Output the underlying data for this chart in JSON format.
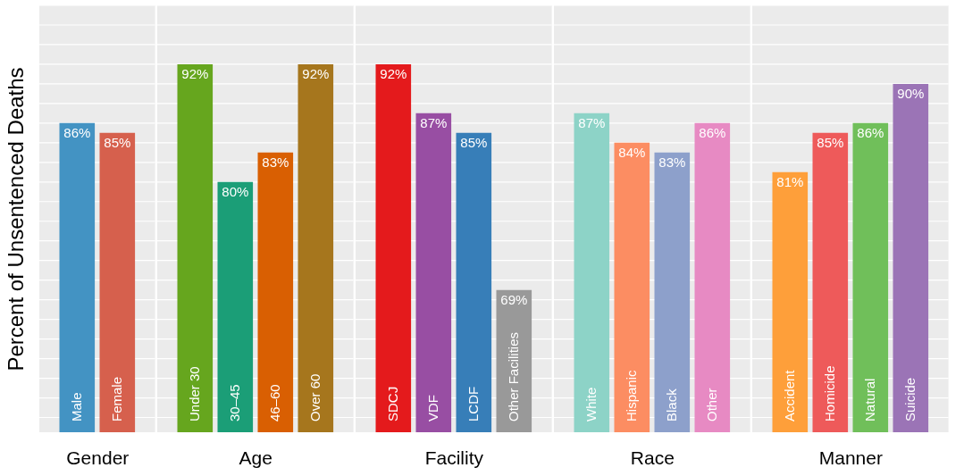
{
  "chart_data": [
    {
      "type": "bar",
      "xlabel": "Gender",
      "ylabel": "Percent of Unsentenced Deaths",
      "categories": [
        "Male",
        "Female"
      ],
      "values": [
        86,
        85
      ],
      "value_labels": [
        "86%",
        "85%"
      ],
      "colors": [
        "#4393c3",
        "#d6604d"
      ],
      "ylim": [
        54.5,
        98
      ],
      "yticks": [
        {
          "value": 56,
          "label": null
        },
        {
          "value": 58,
          "label": null
        },
        {
          "value": 60,
          "label": null
        },
        {
          "value": 62,
          "label": null
        },
        {
          "value": 64,
          "label": null
        },
        {
          "value": 66,
          "label": null
        },
        {
          "value": 68,
          "label": null
        },
        {
          "value": 70,
          "label": null
        },
        {
          "value": 72,
          "label": null
        },
        {
          "value": 74,
          "label": null
        },
        {
          "value": 76,
          "label": null
        },
        {
          "value": 78,
          "label": null
        },
        {
          "value": 80,
          "label": null
        },
        {
          "value": 82,
          "label": null
        },
        {
          "value": 84,
          "label": null
        },
        {
          "value": 86,
          "label": null
        },
        {
          "value": 88,
          "label": null
        },
        {
          "value": 90,
          "label": null
        },
        {
          "value": 92,
          "label": null
        },
        {
          "value": 94,
          "label": null
        },
        {
          "value": 96,
          "label": null
        },
        {
          "value": 98,
          "label": null
        }
      ],
      "grid": "y",
      "tick_labels": false
    },
    {
      "type": "bar",
      "xlabel": "Age",
      "categories": [
        "Under 30",
        "30–45",
        "46–60",
        "Over 60"
      ],
      "values": [
        92,
        80,
        83,
        92
      ],
      "value_labels": [
        "92%",
        "80%",
        "83%",
        "92%"
      ],
      "colors": [
        "#66a61e",
        "#1b9e77",
        "#d95f02",
        "#a6761d"
      ],
      "ylim": [
        54.5,
        98
      ],
      "yticks": [
        {
          "value": 56,
          "label": null
        },
        {
          "value": 58,
          "label": null
        },
        {
          "value": 60,
          "label": null
        },
        {
          "value": 62,
          "label": null
        },
        {
          "value": 64,
          "label": null
        },
        {
          "value": 66,
          "label": null
        },
        {
          "value": 68,
          "label": null
        },
        {
          "value": 70,
          "label": null
        },
        {
          "value": 72,
          "label": null
        },
        {
          "value": 74,
          "label": null
        },
        {
          "value": 76,
          "label": null
        },
        {
          "value": 78,
          "label": null
        },
        {
          "value": 80,
          "label": null
        },
        {
          "value": 82,
          "label": null
        },
        {
          "value": 84,
          "label": null
        },
        {
          "value": 86,
          "label": null
        },
        {
          "value": 88,
          "label": null
        },
        {
          "value": 90,
          "label": null
        },
        {
          "value": 92,
          "label": null
        },
        {
          "value": 94,
          "label": null
        },
        {
          "value": 96,
          "label": null
        },
        {
          "value": 98,
          "label": null
        }
      ],
      "grid": "y",
      "tick_labels": false
    },
    {
      "type": "bar",
      "xlabel": "Facility",
      "categories": [
        "SDCJ",
        "VDF",
        "LCDF",
        "Other Facilities"
      ],
      "values": [
        92,
        87,
        85,
        69
      ],
      "value_labels": [
        "92%",
        "87%",
        "85%",
        "69%"
      ],
      "colors": [
        "#e41a1c",
        "#984ea3",
        "#377eb8",
        "#999999"
      ],
      "ylim": [
        54.5,
        98
      ],
      "yticks": [
        {
          "value": 56,
          "label": null
        },
        {
          "value": 58,
          "label": null
        },
        {
          "value": 60,
          "label": null
        },
        {
          "value": 62,
          "label": null
        },
        {
          "value": 64,
          "label": null
        },
        {
          "value": 66,
          "label": null
        },
        {
          "value": 68,
          "label": null
        },
        {
          "value": 70,
          "label": null
        },
        {
          "value": 72,
          "label": null
        },
        {
          "value": 74,
          "label": null
        },
        {
          "value": 76,
          "label": null
        },
        {
          "value": 78,
          "label": null
        },
        {
          "value": 80,
          "label": null
        },
        {
          "value": 82,
          "label": null
        },
        {
          "value": 84,
          "label": null
        },
        {
          "value": 86,
          "label": null
        },
        {
          "value": 88,
          "label": null
        },
        {
          "value": 90,
          "label": null
        },
        {
          "value": 92,
          "label": null
        },
        {
          "value": 94,
          "label": null
        },
        {
          "value": 96,
          "label": null
        },
        {
          "value": 98,
          "label": null
        }
      ],
      "grid": "y",
      "tick_labels": false
    },
    {
      "type": "bar",
      "xlabel": "Race",
      "categories": [
        "White",
        "Hispanic",
        "Black",
        "Other"
      ],
      "values": [
        87,
        84,
        83,
        86
      ],
      "value_labels": [
        "87%",
        "84%",
        "83%",
        "86%"
      ],
      "colors": [
        "#8dd3c7",
        "#fc8d62",
        "#8da0cb",
        "#e78ac3"
      ],
      "ylim": [
        54.5,
        98
      ],
      "yticks": [
        {
          "value": 56,
          "label": null
        },
        {
          "value": 58,
          "label": null
        },
        {
          "value": 60,
          "label": null
        },
        {
          "value": 62,
          "label": null
        },
        {
          "value": 64,
          "label": null
        },
        {
          "value": 66,
          "label": null
        },
        {
          "value": 68,
          "label": null
        },
        {
          "value": 70,
          "label": null
        },
        {
          "value": 72,
          "label": null
        },
        {
          "value": 74,
          "label": null
        },
        {
          "value": 76,
          "label": null
        },
        {
          "value": 78,
          "label": null
        },
        {
          "value": 80,
          "label": null
        },
        {
          "value": 82,
          "label": null
        },
        {
          "value": 84,
          "label": null
        },
        {
          "value": 86,
          "label": null
        },
        {
          "value": 88,
          "label": null
        },
        {
          "value": 90,
          "label": null
        },
        {
          "value": 92,
          "label": null
        },
        {
          "value": 94,
          "label": null
        },
        {
          "value": 96,
          "label": null
        },
        {
          "value": 98,
          "label": null
        }
      ],
      "grid": "y",
      "tick_labels": false
    },
    {
      "type": "bar",
      "xlabel": "Manner",
      "categories": [
        "Accident",
        "Homicide",
        "Natural",
        "Suicide"
      ],
      "values": [
        81,
        85,
        86,
        90
      ],
      "value_labels": [
        "81%",
        "85%",
        "86%",
        "90%"
      ],
      "colors": [
        "#fe9f3a",
        "#ee5a5a",
        "#70bf5a",
        "#9b74b6"
      ],
      "ylim": [
        54.5,
        98
      ],
      "yticks": [
        {
          "value": 56,
          "label": null
        },
        {
          "value": 58,
          "label": null
        },
        {
          "value": 60,
          "label": null
        },
        {
          "value": 62,
          "label": null
        },
        {
          "value": 64,
          "label": null
        },
        {
          "value": 66,
          "label": null
        },
        {
          "value": 68,
          "label": null
        },
        {
          "value": 70,
          "label": null
        },
        {
          "value": 72,
          "label": null
        },
        {
          "value": 74,
          "label": null
        },
        {
          "value": 76,
          "label": null
        },
        {
          "value": 78,
          "label": null
        },
        {
          "value": 80,
          "label": null
        },
        {
          "value": 82,
          "label": null
        },
        {
          "value": 84,
          "label": null
        },
        {
          "value": 86,
          "label": null
        },
        {
          "value": 88,
          "label": null
        },
        {
          "value": 90,
          "label": null
        },
        {
          "value": 92,
          "label": null
        },
        {
          "value": 94,
          "label": null
        },
        {
          "value": 96,
          "label": null
        },
        {
          "value": 98,
          "label": null
        }
      ],
      "grid": "y",
      "tick_labels": false
    }
  ]
}
